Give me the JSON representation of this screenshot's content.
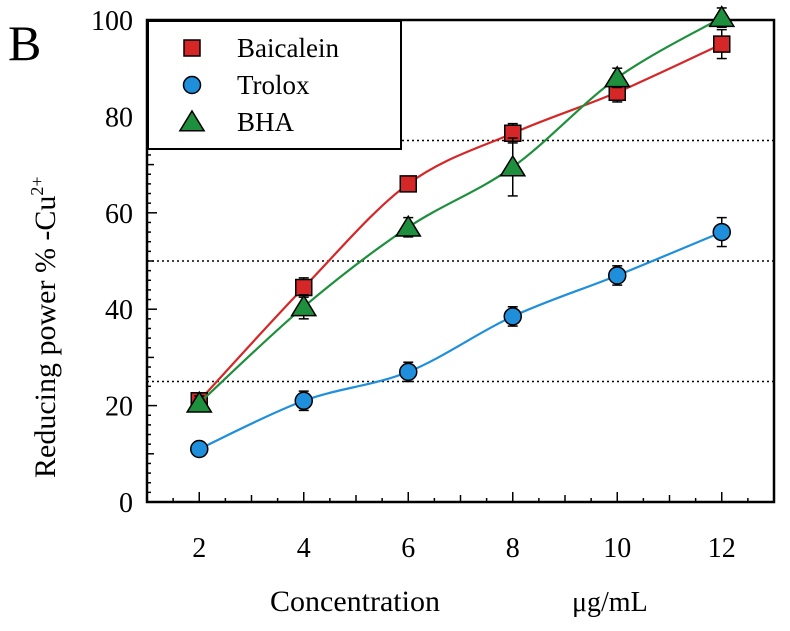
{
  "panel_label": "B",
  "chart_data": {
    "type": "line",
    "xlabel": "Concentration",
    "xunit": "μg/mL",
    "ylabel_main": "Reducing power  % -Cu",
    "ylabel_sup": "2+",
    "x": [
      2,
      4,
      6,
      8,
      10,
      12
    ],
    "xlim": [
      1,
      13
    ],
    "ylim": [
      0,
      100
    ],
    "xticks": [
      "2",
      "4",
      "6",
      "8",
      "10",
      "12"
    ],
    "yticks": [
      "0",
      "20",
      "40",
      "60",
      "80",
      "100"
    ],
    "reference_lines": [
      25,
      50,
      75
    ],
    "legend_position": "top-left",
    "series": [
      {
        "name": "Baicalein",
        "marker": "square",
        "color": "#d62728",
        "line_color": "#d62728",
        "values": [
          21,
          44.5,
          66,
          76.5,
          85,
          95
        ],
        "errors": [
          1.5,
          2,
          1.5,
          2,
          2,
          3
        ]
      },
      {
        "name": "Trolox",
        "marker": "circle",
        "color": "#1f8fdc",
        "line_color": "#1f8fdc",
        "values": [
          11,
          21,
          27,
          38.5,
          47,
          56
        ],
        "errors": [
          1.5,
          2,
          2,
          2,
          2,
          3
        ]
      },
      {
        "name": "BHA",
        "marker": "triangle",
        "color": "#1e8f3c",
        "line_color": "#1e8f3c",
        "values": [
          20.5,
          40.5,
          57,
          69.5,
          88,
          100.5
        ],
        "errors": [
          1.5,
          2.5,
          2,
          6,
          2,
          2
        ]
      }
    ]
  }
}
